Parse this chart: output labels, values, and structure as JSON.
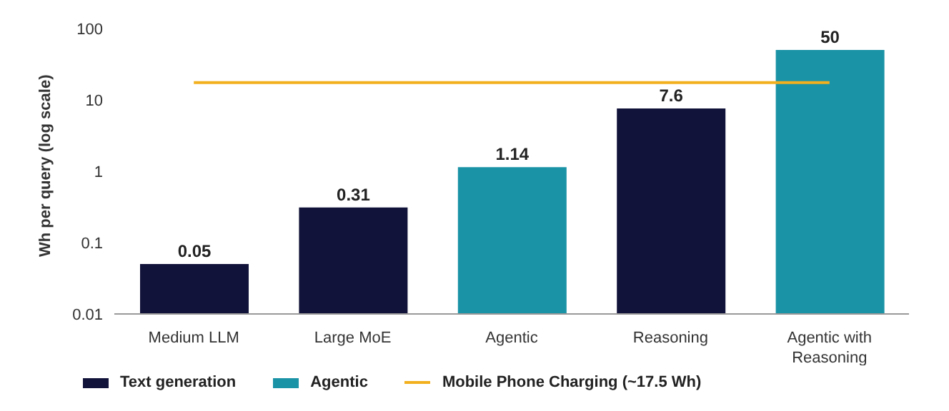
{
  "chart_data": {
    "type": "bar",
    "ylabel": "Wh per query (log scale)",
    "categories": [
      "Medium LLM",
      "Large MoE",
      "Agentic",
      "Reasoning",
      "Agentic with Reasoning"
    ],
    "series": [
      {
        "name": "Text generation",
        "color": "#12133a",
        "values": [
          0.05,
          0.31,
          null,
          7.6,
          null
        ]
      },
      {
        "name": "Agentic",
        "color": "#1a93a6",
        "values": [
          null,
          null,
          1.14,
          null,
          50
        ]
      }
    ],
    "log": "y",
    "ylim": [
      0.01,
      100
    ],
    "yticks": [
      0.01,
      0.1,
      1,
      10,
      100
    ],
    "grid": false,
    "data_labels": true,
    "legend": "bottom left",
    "ref_lines": [
      {
        "axis": "y",
        "value": 17.5,
        "label": "Mobile Phone Charging (~17.5 Wh)",
        "color": "#f2b01e"
      }
    ]
  }
}
